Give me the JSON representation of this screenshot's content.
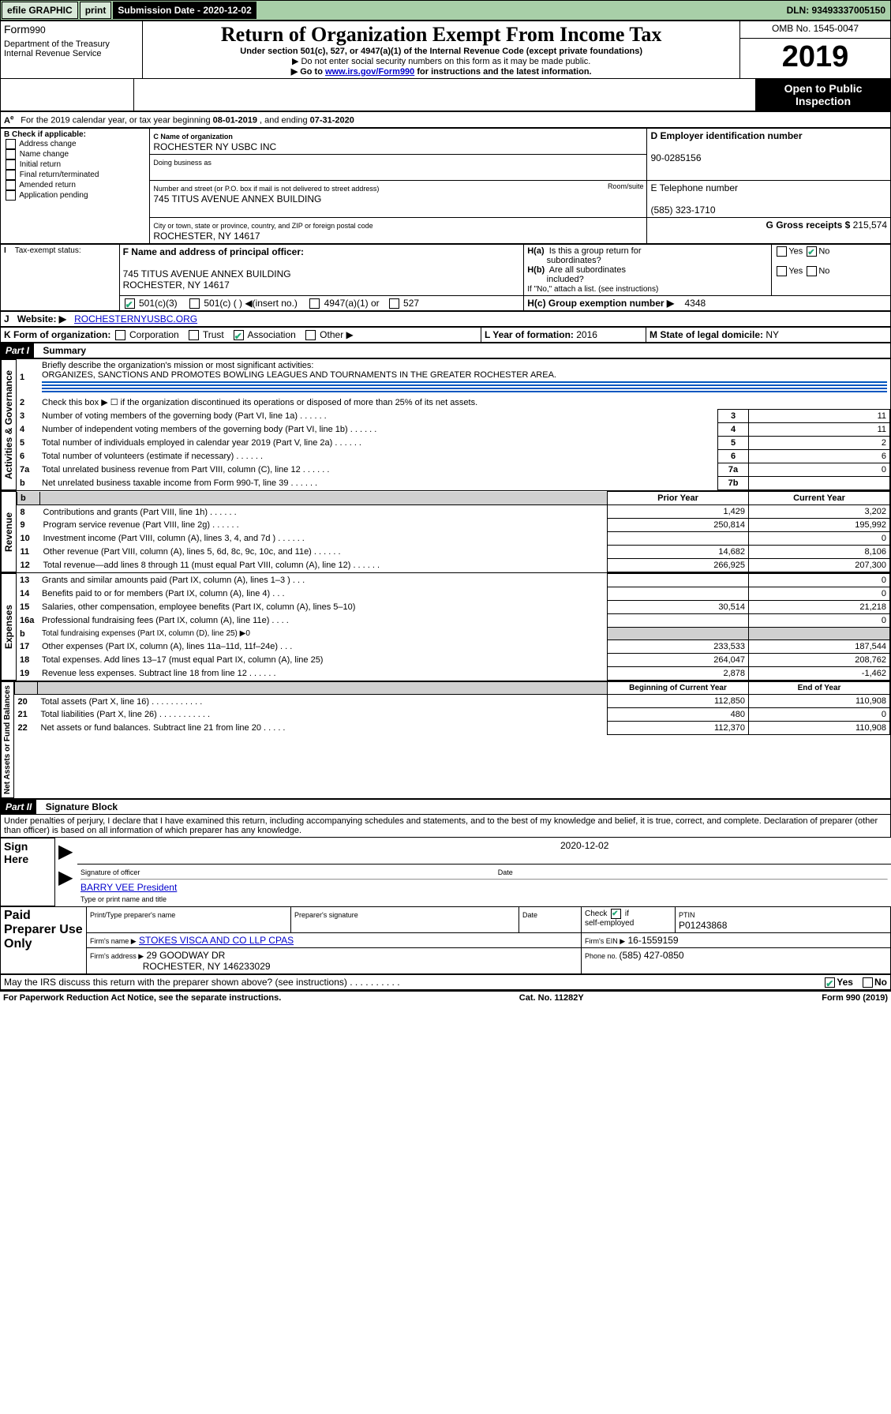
{
  "topbar": {
    "efile": "efile GRAPHIC",
    "print": "print",
    "subdate_label": "Submission Date - 2020-12-02",
    "dln": "DLN: 93493337005150"
  },
  "header": {
    "form_label": "Form",
    "form_number": "990",
    "dept": "Department of the Treasury\nInternal Revenue Service",
    "title": "Return of Organization Exempt From Income Tax",
    "sub1": "Under section 501(c), 527, or 4947(a)(1) of the Internal Revenue Code (except private foundations)",
    "sub2": "▶ Do not enter social security numbers on this form as it may be made public.",
    "sub3_pre": "▶ Go to ",
    "sub3_link": "www.irs.gov/Form990",
    "sub3_post": " for instructions and the latest information.",
    "omb": "OMB No. 1545-0047",
    "year": "2019",
    "inspect": "Open to Public Inspection"
  },
  "a_line": {
    "text_pre": "For the 2019 calendar year, or tax year beginning ",
    "begin": "08-01-2019",
    "text_mid": " , and ending ",
    "end": "07-31-2020"
  },
  "b": {
    "label": "B Check if applicable:",
    "opts": [
      "Address change",
      "Name change",
      "Initial return",
      "Final return/terminated",
      "Amended return",
      "Application pending"
    ]
  },
  "c": {
    "name_label": "C Name of organization",
    "name": "ROCHESTER NY USBC INC",
    "dba_label": "Doing business as",
    "addr_label": "Number and street (or P.O. box if mail is not delivered to street address)",
    "room_label": "Room/suite",
    "addr": "745 TITUS AVENUE ANNEX BUILDING",
    "city_label": "City or town, state or province, country, and ZIP or foreign postal code",
    "city": "ROCHESTER, NY  14617"
  },
  "d": {
    "label": "D Employer identification number",
    "value": "90-0285156"
  },
  "e": {
    "label": "E Telephone number",
    "value": "(585) 323-1710"
  },
  "g": {
    "label": "G Gross receipts $ ",
    "value": "215,574"
  },
  "f": {
    "label": "F Name and address of principal officer:",
    "line1": "745 TITUS AVENUE ANNEX BUILDING",
    "line2": "ROCHESTER, NY  14617"
  },
  "h": {
    "a_label": "H(a)  Is this a group return for subordinates?",
    "b_label": "H(b)  Are all subordinates included?",
    "b_note": "If \"No,\" attach a list. (see instructions)",
    "c_label": "H(c)  Group exemption number ▶",
    "c_val": "4348",
    "yes": "Yes",
    "no": "No"
  },
  "i": {
    "label": "Tax-exempt status:",
    "opts": [
      "501(c)(3)",
      "501(c) (  ) ◀(insert no.)",
      "4947(a)(1) or",
      "527"
    ]
  },
  "j": {
    "label": "Website: ▶",
    "value": "ROCHESTERNYUSBC.ORG"
  },
  "k": {
    "label": "K Form of organization:",
    "opts": [
      "Corporation",
      "Trust",
      "Association",
      "Other ▶"
    ]
  },
  "l": {
    "label": "L Year of formation: ",
    "value": "2016"
  },
  "m": {
    "label": "M State of legal domicile: ",
    "value": "NY"
  },
  "part1": {
    "label": "Part I",
    "title": "Summary"
  },
  "govern": {
    "side": "Activities & Governance",
    "q1": "Briefly describe the organization's mission or most significant activities:",
    "q1val": "ORGANIZES, SANCTIONS AND PROMOTES BOWLING LEAGUES AND TOURNAMENTS IN THE GREATER ROCHESTER AREA.",
    "q2": "Check this box ▶ ☐  if the organization discontinued its operations or disposed of more than 25% of its net assets.",
    "rows": [
      {
        "n": "3",
        "t": "Number of voting members of the governing body (Part VI, line 1a)",
        "r": "3",
        "v": "11"
      },
      {
        "n": "4",
        "t": "Number of independent voting members of the governing body (Part VI, line 1b)",
        "r": "4",
        "v": "11"
      },
      {
        "n": "5",
        "t": "Total number of individuals employed in calendar year 2019 (Part V, line 2a)",
        "r": "5",
        "v": "2"
      },
      {
        "n": "6",
        "t": "Total number of volunteers (estimate if necessary)",
        "r": "6",
        "v": "6"
      },
      {
        "n": "7a",
        "t": "Total unrelated business revenue from Part VIII, column (C), line 12",
        "r": "7a",
        "v": "0"
      },
      {
        "n": "b",
        "t": "Net unrelated business taxable income from Form 990-T, line 39",
        "r": "7b",
        "v": ""
      }
    ]
  },
  "rev": {
    "side": "Revenue",
    "hdr_prior": "Prior Year",
    "hdr_cur": "Current Year",
    "rows": [
      {
        "n": "8",
        "t": "Contributions and grants (Part VIII, line 1h)",
        "p": "1,429",
        "c": "3,202"
      },
      {
        "n": "9",
        "t": "Program service revenue (Part VIII, line 2g)",
        "p": "250,814",
        "c": "195,992"
      },
      {
        "n": "10",
        "t": "Investment income (Part VIII, column (A), lines 3, 4, and 7d )",
        "p": "",
        "c": "0"
      },
      {
        "n": "11",
        "t": "Other revenue (Part VIII, column (A), lines 5, 6d, 8c, 9c, 10c, and 11e)",
        "p": "14,682",
        "c": "8,106"
      },
      {
        "n": "12",
        "t": "Total revenue—add lines 8 through 11 (must equal Part VIII, column (A), line 12)",
        "p": "266,925",
        "c": "207,300"
      }
    ]
  },
  "exp": {
    "side": "Expenses",
    "rows": [
      {
        "n": "13",
        "t": "Grants and similar amounts paid (Part IX, column (A), lines 1–3 )   .    .    .",
        "p": "",
        "c": "0"
      },
      {
        "n": "14",
        "t": "Benefits paid to or for members (Part IX, column (A), line 4)   .    .    .",
        "p": "",
        "c": "0"
      },
      {
        "n": "15",
        "t": "Salaries, other compensation, employee benefits (Part IX, column (A), lines 5–10)",
        "p": "30,514",
        "c": "21,218"
      },
      {
        "n": "16a",
        "t": "Professional fundraising fees (Part IX, column (A), line 11e)   .    .    .    .",
        "p": "",
        "c": "0"
      },
      {
        "n": "b",
        "t": "Total fundraising expenses (Part IX, column (D), line 25) ▶0",
        "p": "GRAY",
        "c": "GRAY"
      },
      {
        "n": "17",
        "t": "Other expenses (Part IX, column (A), lines 11a–11d, 11f–24e)   .    .    .",
        "p": "233,533",
        "c": "187,544"
      },
      {
        "n": "18",
        "t": "Total expenses. Add lines 13–17 (must equal Part IX, column (A), line 25)",
        "p": "264,047",
        "c": "208,762"
      },
      {
        "n": "19",
        "t": "Revenue less expenses. Subtract line 18 from line 12   .    .    .    .    .    .",
        "p": "2,878",
        "c": "-1,462"
      }
    ]
  },
  "net": {
    "side": "Net Assets or Fund Balances",
    "hdr_prior": "Beginning of Current Year",
    "hdr_cur": "End of Year",
    "rows": [
      {
        "n": "20",
        "t": "Total assets (Part X, line 16)   .    .    .    .    .    .    .    .    .    .    .",
        "p": "112,850",
        "c": "110,908"
      },
      {
        "n": "21",
        "t": "Total liabilities (Part X, line 26)   .    .    .    .    .    .    .    .    .    .    .",
        "p": "480",
        "c": "0"
      },
      {
        "n": "22",
        "t": "Net assets or fund balances. Subtract line 21 from line 20   .    .    .    .    .",
        "p": "112,370",
        "c": "110,908"
      }
    ]
  },
  "part2": {
    "label": "Part II",
    "title": "Signature Block"
  },
  "sig": {
    "decl": "Under penalties of perjury, I declare that I have examined this return, including accompanying schedules and statements, and to the best of my knowledge and belief, it is true, correct, and complete. Declaration of preparer (other than officer) is based on all information of which preparer has any knowledge.",
    "sign_here": "Sign Here",
    "sig_officer": "Signature of officer",
    "date": "2020-12-02",
    "date_label": "Date",
    "name": "BARRY VEE  President",
    "name_label": "Type or print name and title"
  },
  "paid": {
    "title": "Paid Preparer Use Only",
    "h1": "Print/Type preparer's name",
    "h2": "Preparer's signature",
    "h3": "Date",
    "check_label": "Check",
    "self": "self-employed",
    "ptin_label": "PTIN",
    "ptin": "P01243868",
    "firm_name_label": "Firm's name    ▶",
    "firm_name": "STOKES VISCA AND CO LLP CPAS",
    "firm_ein_label": "Firm's EIN ▶",
    "firm_ein": "16-1559159",
    "firm_addr_label": "Firm's address ▶",
    "firm_addr": "29 GOODWAY DR",
    "firm_city": "ROCHESTER, NY  146233029",
    "phone_label": "Phone no. ",
    "phone": "(585) 427-0850"
  },
  "discuss": {
    "q": "May the IRS discuss this return with the preparer shown above? (see instructions)   .    .    .    .    .    .    .    .    .    .",
    "yes": "Yes",
    "no": "No"
  },
  "footer": {
    "notice": "For Paperwork Reduction Act Notice, see the separate instructions.",
    "cat": "Cat. No. 11282Y",
    "form": "Form 990 (2019)"
  }
}
